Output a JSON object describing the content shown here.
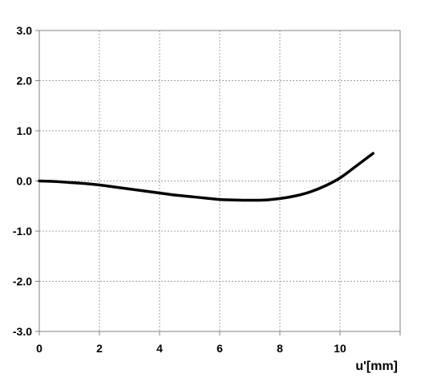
{
  "chart_data": {
    "type": "line",
    "title": "",
    "xlabel": "u'[mm]",
    "ylabel": "",
    "xlim": [
      0,
      12
    ],
    "ylim": [
      -3.0,
      3.0
    ],
    "x_ticks": [
      "0",
      "2",
      "4",
      "6",
      "8",
      "10"
    ],
    "y_ticks": [
      "3.0",
      "2.0",
      "1.0",
      "0.0",
      "-1.0",
      "-2.0",
      "-3.0"
    ],
    "grid": true,
    "legend": "none",
    "series": [
      {
        "color": "#000000",
        "x": [
          0,
          0.5,
          1.0,
          1.5,
          2.0,
          2.5,
          3.0,
          3.5,
          4.0,
          4.5,
          5.0,
          5.5,
          6.0,
          6.5,
          7.0,
          7.5,
          8.0,
          8.5,
          9.0,
          9.5,
          10.0,
          10.5,
          11.1
        ],
        "y": [
          0.0,
          -0.01,
          -0.03,
          -0.05,
          -0.08,
          -0.12,
          -0.16,
          -0.2,
          -0.24,
          -0.28,
          -0.31,
          -0.34,
          -0.37,
          -0.38,
          -0.385,
          -0.38,
          -0.35,
          -0.3,
          -0.22,
          -0.1,
          0.06,
          0.28,
          0.55
        ]
      }
    ]
  }
}
